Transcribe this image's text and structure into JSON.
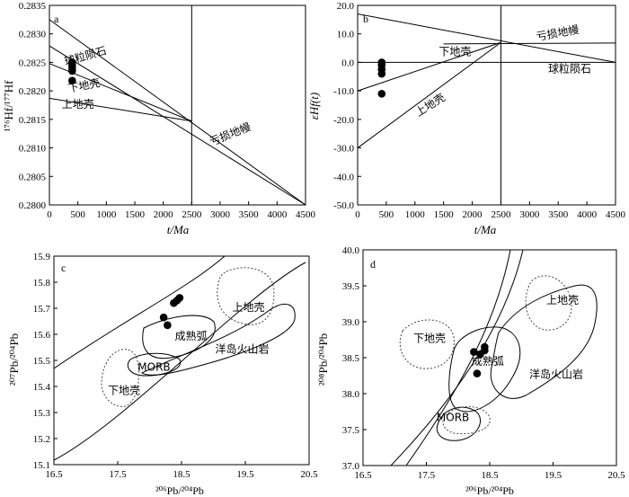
{
  "chart_data": [
    {
      "panel": "a",
      "type": "line",
      "ylabel_text": "¹⁷⁶Hf/¹⁷⁷Hf",
      "xlabel_text": "t/Ma",
      "xlim": [
        0,
        4500
      ],
      "ylim": [
        0.28,
        0.2835
      ],
      "xticks": [
        "0",
        "500",
        "1000",
        "1500",
        "2000",
        "2500",
        "3000",
        "3500",
        "4000",
        "4500"
      ],
      "yticks": [
        "0.2800",
        "0.2805",
        "0.2810",
        "0.2815",
        "0.2820",
        "0.2825",
        "0.2830",
        "0.2835"
      ],
      "lines": [
        {
          "name": "depleted_mantle",
          "x": [
            0,
            4500
          ],
          "y": [
            0.28325,
            0.28
          ]
        },
        {
          "name": "chondrite",
          "x": [
            0,
            4500
          ],
          "y": [
            0.28279,
            0.28
          ]
        },
        {
          "name": "lower_crust",
          "x": [
            0,
            2500
          ],
          "y": [
            0.28248,
            0.28147
          ]
        },
        {
          "name": "upper_crust",
          "x": [
            0,
            2500
          ],
          "y": [
            0.28187,
            0.28147
          ]
        }
      ],
      "vline_x": 2500,
      "points": {
        "x": [
          400,
          400,
          400,
          400,
          400
        ],
        "y": [
          0.2825,
          0.28245,
          0.2824,
          0.28235,
          0.28218
        ]
      },
      "labels": [
        {
          "text": "球粒陨石",
          "x": 650,
          "y": 0.28255,
          "rotate": -16
        },
        {
          "text": "下地壳",
          "x": 620,
          "y": 0.28203,
          "rotate": -11
        },
        {
          "text": "上地壳",
          "x": 500,
          "y": 0.2817,
          "rotate": 0
        },
        {
          "text": "亏损地幔",
          "x": 3200,
          "y": 0.28118,
          "rotate": -22
        }
      ],
      "panel_label": "a"
    },
    {
      "panel": "b",
      "type": "line",
      "ylabel_text": "εHf(t)",
      "xlabel_text": "t/Ma",
      "xlim": [
        0,
        4500
      ],
      "ylim": [
        -50,
        20
      ],
      "xticks": [
        "0",
        "500",
        "1000",
        "1500",
        "2000",
        "2500",
        "3000",
        "3500",
        "4000",
        "4500"
      ],
      "yticks": [
        "20.0",
        "10.0",
        "0.0",
        "-10.0",
        "-20.0",
        "-30.0",
        "-40.0",
        "-50.0"
      ],
      "lines": [
        {
          "name": "depleted_mantle",
          "x": [
            0,
            4500
          ],
          "y": [
            17,
            0
          ]
        },
        {
          "name": "chondrite",
          "x": [
            0,
            4500
          ],
          "y": [
            0,
            0
          ]
        },
        {
          "name": "lower_crust",
          "x": [
            0,
            2500
          ],
          "y": [
            -10,
            7
          ]
        },
        {
          "name": "upper_crust",
          "x": [
            0,
            2500
          ],
          "y": [
            -30,
            7
          ]
        },
        {
          "name": "extension",
          "x": [
            1500,
            4500
          ],
          "y": [
            6.5,
            6.8
          ]
        }
      ],
      "vline_x": 2500,
      "points": {
        "x": [
          420,
          420,
          420,
          420,
          420
        ],
        "y": [
          0,
          -1,
          -2.5,
          -4,
          -11
        ]
      },
      "labels": [
        {
          "text": "下地壳",
          "x": 1700,
          "y": 2.5,
          "rotate": 0
        },
        {
          "text": "亏损地幔",
          "x": 3500,
          "y": 9,
          "rotate": -10
        },
        {
          "text": "球粒陨石",
          "x": 3700,
          "y": -3.5,
          "rotate": 0
        },
        {
          "text": "上地壳",
          "x": 1300,
          "y": -16,
          "rotate": -32
        }
      ],
      "panel_label": "b"
    },
    {
      "panel": "c",
      "type": "scatter",
      "ylabel_text": "²⁰⁷Pb/²⁰⁴Pb",
      "xlabel_text": "²⁰⁶Pb/²⁰⁴Pb",
      "xlim": [
        16.5,
        20.5
      ],
      "ylim": [
        15.1,
        15.9
      ],
      "xticks": [
        "16.5",
        "17.5",
        "18.5",
        "19.5",
        "20.5"
      ],
      "yticks": [
        "15.1",
        "15.2",
        "15.3",
        "15.4",
        "15.5",
        "15.6",
        "15.7",
        "15.8",
        "15.9"
      ],
      "points": {
        "x": [
          18.43,
          18.47,
          18.22,
          18.28,
          18.38
        ],
        "y": [
          15.73,
          15.74,
          15.665,
          15.635,
          15.72
        ]
      },
      "labels": [
        {
          "text": "上地壳",
          "x": 19.55,
          "y": 15.69
        },
        {
          "text": "成熟弧",
          "x": 18.65,
          "y": 15.58
        },
        {
          "text": "洋岛火山岩",
          "x": 19.45,
          "y": 15.53
        },
        {
          "text": "MORB",
          "x": 18.07,
          "y": 15.46
        },
        {
          "text": "下地壳",
          "x": 17.6,
          "y": 15.37
        }
      ],
      "panel_label": "c"
    },
    {
      "panel": "d",
      "type": "scatter",
      "ylabel_text": "²⁰⁸Pb/²⁰⁴Pb",
      "xlabel_text": "²⁰⁶Pb/²⁰⁴Pb",
      "xlim": [
        16.5,
        20.5
      ],
      "ylim": [
        37.0,
        40.0
      ],
      "xticks": [
        "16.5",
        "17.5",
        "18.5",
        "19.5",
        "20.5"
      ],
      "yticks": [
        "37.0",
        "37.5",
        "38.0",
        "38.5",
        "39.0",
        "39.5",
        "40.0"
      ],
      "points": {
        "x": [
          18.25,
          18.35,
          18.42,
          18.42,
          18.3
        ],
        "y": [
          38.58,
          38.55,
          38.6,
          38.65,
          38.28
        ]
      },
      "labels": [
        {
          "text": "上地壳",
          "x": 19.65,
          "y": 39.25
        },
        {
          "text": "下地壳",
          "x": 17.55,
          "y": 38.72
        },
        {
          "text": "成熟弧",
          "x": 18.47,
          "y": 38.4
        },
        {
          "text": "洋岛火山岩",
          "x": 19.55,
          "y": 38.22
        },
        {
          "text": "MORB",
          "x": 17.92,
          "y": 37.62
        }
      ],
      "panel_label": "d"
    }
  ]
}
